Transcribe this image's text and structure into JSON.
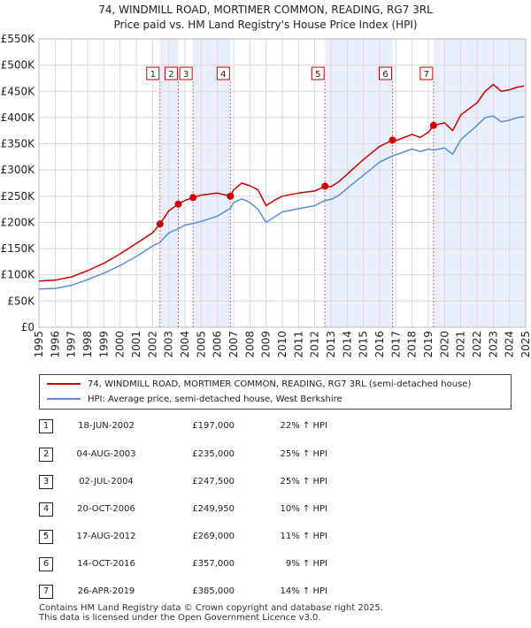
{
  "header": {
    "title": "74, WINDMILL ROAD, MORTIMER COMMON, READING, RG7 3RL",
    "subtitle": "Price paid vs. HM Land Registry's House Price Index (HPI)"
  },
  "chart_data": {
    "type": "line",
    "title": "74, WINDMILL ROAD, MORTIMER COMMON, READING, RG7 3RL",
    "subtitle": "Price paid vs. HM Land Registry's House Price Index (HPI)",
    "xlim": [
      1995,
      2025
    ],
    "ylim": [
      0,
      550000
    ],
    "y_ticks": [
      {
        "value": 0,
        "label": "£0"
      },
      {
        "value": 50000,
        "label": "£50K"
      },
      {
        "value": 100000,
        "label": "£100K"
      },
      {
        "value": 150000,
        "label": "£150K"
      },
      {
        "value": 200000,
        "label": "£200K"
      },
      {
        "value": 250000,
        "label": "£250K"
      },
      {
        "value": 300000,
        "label": "£300K"
      },
      {
        "value": 350000,
        "label": "£350K"
      },
      {
        "value": 400000,
        "label": "£400K"
      },
      {
        "value": 450000,
        "label": "£450K"
      },
      {
        "value": 500000,
        "label": "£500K"
      },
      {
        "value": 550000,
        "label": "£550K"
      }
    ],
    "x_ticks": [
      "1995",
      "1996",
      "1997",
      "1998",
      "1999",
      "2000",
      "2001",
      "2002",
      "2003",
      "2004",
      "2005",
      "2006",
      "2007",
      "2008",
      "2009",
      "2010",
      "2011",
      "2012",
      "2013",
      "2014",
      "2015",
      "2016",
      "2017",
      "2018",
      "2019",
      "2020",
      "2021",
      "2022",
      "2023",
      "2024",
      "2025"
    ],
    "grid": true,
    "series": [
      {
        "name": "74, WINDMILL ROAD, MORTIMER COMMON, READING, RG7 3RL (semi-detached house)",
        "color": "#cc0000",
        "points": [
          [
            1995.0,
            88000
          ],
          [
            1996.0,
            90000
          ],
          [
            1997.0,
            96000
          ],
          [
            1998.0,
            108000
          ],
          [
            1999.0,
            122000
          ],
          [
            2000.0,
            140000
          ],
          [
            2001.0,
            160000
          ],
          [
            2002.0,
            180000
          ],
          [
            2002.46,
            197000
          ],
          [
            2003.0,
            222000
          ],
          [
            2003.59,
            235000
          ],
          [
            2004.0,
            242000
          ],
          [
            2004.5,
            247500
          ],
          [
            2005.0,
            252000
          ],
          [
            2006.0,
            256000
          ],
          [
            2006.8,
            249950
          ],
          [
            2007.0,
            262000
          ],
          [
            2007.5,
            275000
          ],
          [
            2008.0,
            270000
          ],
          [
            2008.5,
            262000
          ],
          [
            2009.0,
            232000
          ],
          [
            2009.5,
            242000
          ],
          [
            2010.0,
            250000
          ],
          [
            2011.0,
            256000
          ],
          [
            2012.0,
            260000
          ],
          [
            2012.63,
            269000
          ],
          [
            2013.0,
            268000
          ],
          [
            2013.5,
            278000
          ],
          [
            2014.0,
            292000
          ],
          [
            2015.0,
            320000
          ],
          [
            2016.0,
            345000
          ],
          [
            2016.79,
            357000
          ],
          [
            2017.0,
            356000
          ],
          [
            2018.0,
            368000
          ],
          [
            2018.5,
            362000
          ],
          [
            2019.0,
            372000
          ],
          [
            2019.32,
            385000
          ],
          [
            2020.0,
            390000
          ],
          [
            2020.5,
            375000
          ],
          [
            2021.0,
            405000
          ],
          [
            2022.0,
            428000
          ],
          [
            2022.5,
            450000
          ],
          [
            2023.0,
            463000
          ],
          [
            2023.5,
            450000
          ],
          [
            2024.0,
            453000
          ],
          [
            2024.5,
            458000
          ],
          [
            2024.9,
            460000
          ]
        ]
      },
      {
        "name": "HPI: Average price, semi-detached house, West Berkshire",
        "color": "#5b8ed6",
        "points": [
          [
            1995.0,
            73000
          ],
          [
            1996.0,
            74000
          ],
          [
            1997.0,
            80000
          ],
          [
            1998.0,
            91000
          ],
          [
            1999.0,
            103000
          ],
          [
            2000.0,
            118000
          ],
          [
            2001.0,
            135000
          ],
          [
            2002.0,
            155000
          ],
          [
            2002.46,
            162000
          ],
          [
            2003.0,
            180000
          ],
          [
            2003.59,
            188000
          ],
          [
            2004.0,
            195000
          ],
          [
            2004.5,
            198000
          ],
          [
            2005.0,
            202000
          ],
          [
            2006.0,
            212000
          ],
          [
            2006.8,
            227000
          ],
          [
            2007.0,
            238000
          ],
          [
            2007.5,
            245000
          ],
          [
            2008.0,
            238000
          ],
          [
            2008.5,
            225000
          ],
          [
            2009.0,
            200000
          ],
          [
            2009.5,
            210000
          ],
          [
            2010.0,
            220000
          ],
          [
            2011.0,
            226000
          ],
          [
            2012.0,
            232000
          ],
          [
            2012.63,
            242000
          ],
          [
            2013.0,
            244000
          ],
          [
            2013.5,
            252000
          ],
          [
            2014.0,
            265000
          ],
          [
            2015.0,
            290000
          ],
          [
            2016.0,
            315000
          ],
          [
            2016.79,
            327000
          ],
          [
            2017.0,
            329000
          ],
          [
            2018.0,
            340000
          ],
          [
            2018.5,
            335000
          ],
          [
            2019.0,
            340000
          ],
          [
            2019.32,
            338000
          ],
          [
            2020.0,
            342000
          ],
          [
            2020.5,
            330000
          ],
          [
            2021.0,
            358000
          ],
          [
            2022.0,
            385000
          ],
          [
            2022.5,
            400000
          ],
          [
            2023.0,
            403000
          ],
          [
            2023.5,
            392000
          ],
          [
            2024.0,
            395000
          ],
          [
            2024.5,
            400000
          ],
          [
            2024.9,
            402000
          ]
        ]
      }
    ],
    "sales": [
      {
        "label": "1",
        "date": "18-JUN-2002",
        "x": 2002.46,
        "price": 197000,
        "price_label": "£197,000",
        "hpi": "22% ↑ HPI"
      },
      {
        "label": "2",
        "date": "04-AUG-2003",
        "x": 2003.59,
        "price": 235000,
        "price_label": "£235,000",
        "hpi": "25% ↑ HPI"
      },
      {
        "label": "3",
        "date": "02-JUL-2004",
        "x": 2004.5,
        "price": 247500,
        "price_label": "£247,500",
        "hpi": "25% ↑ HPI"
      },
      {
        "label": "4",
        "date": "20-OCT-2006",
        "x": 2006.8,
        "price": 249950,
        "price_label": "£249,950",
        "hpi": "10% ↑ HPI"
      },
      {
        "label": "5",
        "date": "17-AUG-2012",
        "x": 2012.63,
        "price": 269000,
        "price_label": "£269,000",
        "hpi": "11% ↑ HPI"
      },
      {
        "label": "6",
        "date": "14-OCT-2016",
        "x": 2016.79,
        "price": 357000,
        "price_label": "£357,000",
        "hpi": "9% ↑ HPI"
      },
      {
        "label": "7",
        "date": "26-APR-2019",
        "x": 2019.32,
        "price": 385000,
        "price_label": "£385,000",
        "hpi": "14% ↑ HPI"
      }
    ],
    "shaded_periods": [
      [
        2002.46,
        2003.59
      ],
      [
        2004.5,
        2006.8
      ],
      [
        2012.63,
        2016.79
      ],
      [
        2019.32,
        2025
      ]
    ],
    "colors": {
      "price_line": "#cc0000",
      "hpi_line": "#5b8ed6",
      "event_line": "#e06666",
      "shade": "#e8eefa",
      "grid": "#d8d8d8"
    }
  },
  "legend": {
    "items": [
      {
        "label": "74, WINDMILL ROAD, MORTIMER COMMON, READING, RG7 3RL (semi-detached house)",
        "color": "#cc0000"
      },
      {
        "label": "HPI: Average price, semi-detached house, West Berkshire",
        "color": "#5b8ed6"
      }
    ]
  },
  "footer": {
    "line1": "Contains HM Land Registry data © Crown copyright and database right 2025.",
    "line2": "This data is licensed under the Open Government Licence v3.0."
  }
}
